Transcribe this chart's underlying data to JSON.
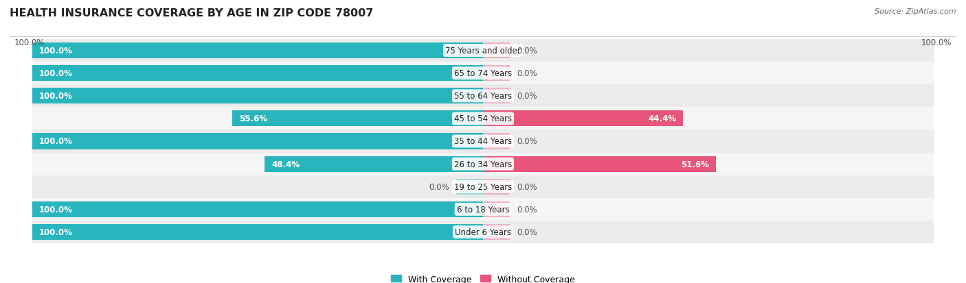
{
  "title": "HEALTH INSURANCE COVERAGE BY AGE IN ZIP CODE 78007",
  "source": "Source: ZipAtlas.com",
  "categories": [
    "Under 6 Years",
    "6 to 18 Years",
    "19 to 25 Years",
    "26 to 34 Years",
    "35 to 44 Years",
    "45 to 54 Years",
    "55 to 64 Years",
    "65 to 74 Years",
    "75 Years and older"
  ],
  "with_coverage": [
    100.0,
    100.0,
    0.0,
    48.4,
    100.0,
    55.6,
    100.0,
    100.0,
    100.0
  ],
  "without_coverage": [
    0.0,
    0.0,
    0.0,
    51.6,
    0.0,
    44.4,
    0.0,
    0.0,
    0.0
  ],
  "color_with": "#29b5bd",
  "color_without_large": "#e8547a",
  "color_without_small": "#f2aec4",
  "color_with_small": "#a0d8dc",
  "row_bg_odd": "#ebebeb",
  "row_bg_even": "#f5f5f5",
  "background_fig": "#ffffff",
  "title_fontsize": 11.5,
  "label_fontsize": 8.5,
  "source_fontsize": 8,
  "legend_fontsize": 9,
  "bar_height": 0.7,
  "xlim": 100
}
